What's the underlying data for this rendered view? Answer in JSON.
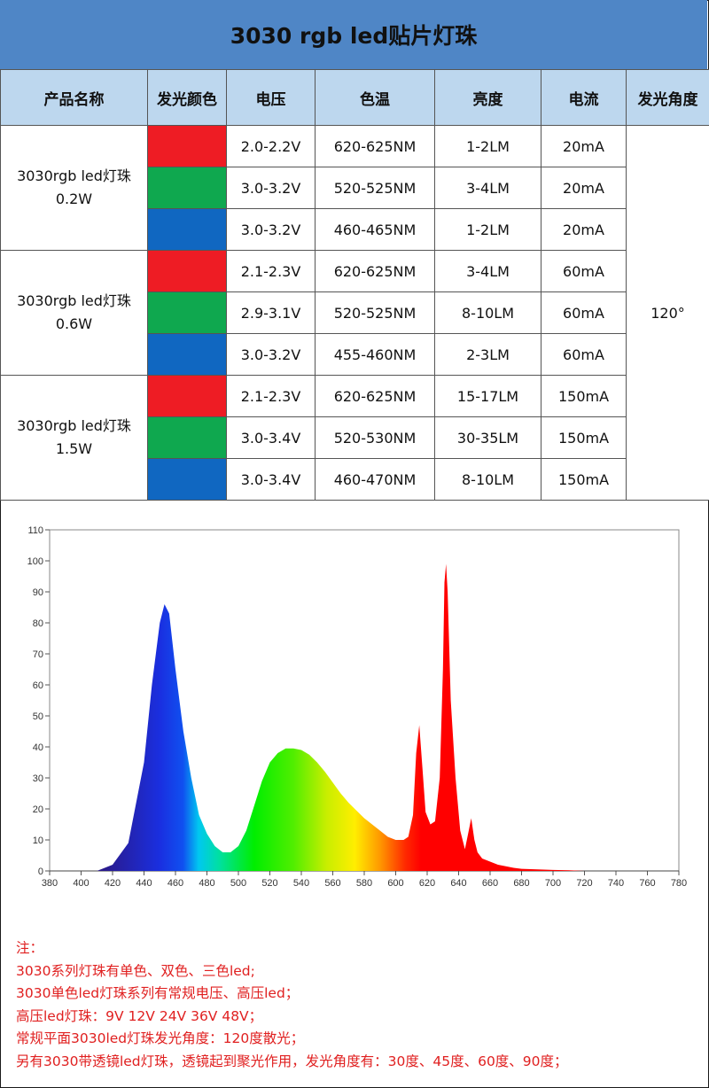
{
  "title": "3030 rgb led贴片灯珠",
  "table": {
    "headers": [
      "产品名称",
      "发光颜色",
      "电压",
      "色温",
      "亮度",
      "电流",
      "发光角度"
    ],
    "angle": "120°",
    "groups": [
      {
        "name": [
          "3030rgb led灯珠",
          "0.2W"
        ],
        "rows": [
          {
            "color": "#ee1c24",
            "voltage": "2.0-2.2V",
            "wavelength": "620-625NM",
            "brightness": "1-2LM",
            "current": "20mA"
          },
          {
            "color": "#0fa84f",
            "voltage": "3.0-3.2V",
            "wavelength": "520-525NM",
            "brightness": "3-4LM",
            "current": "20mA"
          },
          {
            "color": "#1067c1",
            "voltage": "3.0-3.2V",
            "wavelength": "460-465NM",
            "brightness": "1-2LM",
            "current": "20mA"
          }
        ]
      },
      {
        "name": [
          "3030rgb led灯珠",
          "0.6W"
        ],
        "rows": [
          {
            "color": "#ee1c24",
            "voltage": "2.1-2.3V",
            "wavelength": "620-625NM",
            "brightness": "3-4LM",
            "current": "60mA"
          },
          {
            "color": "#0fa84f",
            "voltage": "2.9-3.1V",
            "wavelength": "520-525NM",
            "brightness": "8-10LM",
            "current": "60mA"
          },
          {
            "color": "#1067c1",
            "voltage": "3.0-3.2V",
            "wavelength": "455-460NM",
            "brightness": "2-3LM",
            "current": "60mA"
          }
        ]
      },
      {
        "name": [
          "3030rgb led灯珠",
          "1.5W"
        ],
        "rows": [
          {
            "color": "#ee1c24",
            "voltage": "2.1-2.3V",
            "wavelength": "620-625NM",
            "brightness": "15-17LM",
            "current": "150mA"
          },
          {
            "color": "#0fa84f",
            "voltage": "3.0-3.4V",
            "wavelength": "520-530NM",
            "brightness": "30-35LM",
            "current": "150mA"
          },
          {
            "color": "#1067c1",
            "voltage": "3.0-3.4V",
            "wavelength": "460-470NM",
            "brightness": "8-10LM",
            "current": "150mA"
          }
        ]
      }
    ]
  },
  "chart_data": {
    "type": "area",
    "title": "",
    "xlabel": "",
    "ylabel": "",
    "xlim": [
      380,
      780
    ],
    "ylim": [
      0,
      110
    ],
    "xticks": [
      380,
      400,
      420,
      440,
      460,
      480,
      500,
      520,
      540,
      560,
      580,
      600,
      620,
      640,
      660,
      680,
      700,
      720,
      740,
      760,
      780
    ],
    "yticks": [
      0,
      10,
      20,
      30,
      40,
      50,
      60,
      70,
      80,
      90,
      100,
      110
    ],
    "grid": false,
    "fill": "visible-spectrum gradient by wavelength",
    "x": [
      410,
      420,
      430,
      440,
      445,
      450,
      453,
      456,
      460,
      465,
      470,
      475,
      480,
      485,
      490,
      495,
      500,
      505,
      510,
      515,
      520,
      525,
      530,
      535,
      540,
      545,
      550,
      555,
      560,
      565,
      570,
      575,
      580,
      585,
      590,
      595,
      600,
      605,
      608,
      611,
      613,
      615,
      617,
      619,
      622,
      625,
      628,
      630,
      631,
      632,
      633,
      635,
      638,
      641,
      644,
      646,
      648,
      650,
      652,
      655,
      660,
      665,
      670,
      675,
      680,
      690,
      700,
      710,
      720
    ],
    "y": [
      0,
      2,
      9,
      35,
      60,
      80,
      86,
      83,
      65,
      45,
      30,
      18,
      12,
      8,
      6,
      6,
      8,
      13,
      21,
      29,
      35,
      38,
      39.5,
      39.5,
      39,
      37.5,
      35,
      32,
      28.5,
      25,
      22,
      19.5,
      17,
      15,
      13,
      11,
      10,
      10,
      11,
      18,
      38,
      47,
      33,
      19,
      15,
      16,
      30,
      65,
      93,
      99,
      90,
      55,
      30,
      13,
      7,
      12,
      17,
      10,
      6,
      4,
      3,
      2,
      1.5,
      1,
      0.7,
      0.5,
      0.3,
      0.2,
      0
    ]
  },
  "notes": [
    "注：",
    "3030系列灯珠有单色、双色、三色led;",
    "3030单色led灯珠系列有常规电压、高压led；",
    "高压led灯珠：9V 12V 24V 36V 48V；",
    "常规平面3030led灯珠发光角度：120度散光；",
    "另有3030带透镜led灯珠，透镜起到聚光作用，发光角度有：30度、45度、60度、90度；"
  ]
}
